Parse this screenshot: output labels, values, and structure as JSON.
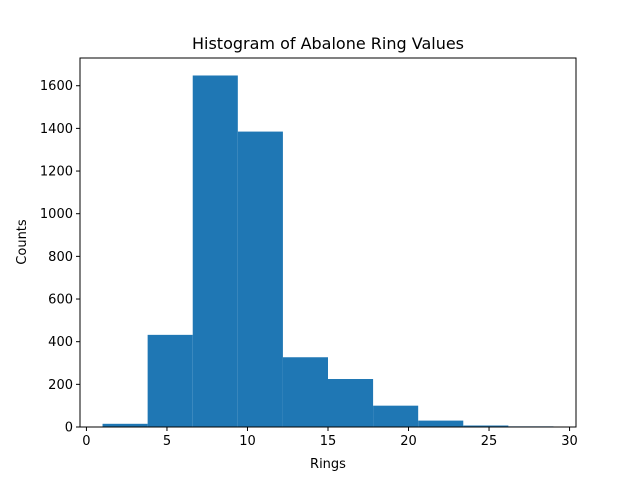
{
  "chart_data": {
    "type": "bar",
    "title": "Histogram of Abalone Ring Values",
    "xlabel": "Rings",
    "ylabel": "Counts",
    "xlim": [
      -0.4,
      30.4
    ],
    "ylim": [
      0,
      1730
    ],
    "x_ticks": [
      0,
      5,
      10,
      15,
      20,
      25,
      30
    ],
    "y_ticks": [
      0,
      200,
      400,
      600,
      800,
      1000,
      1200,
      1400,
      1600
    ],
    "bin_edges": [
      1.0,
      3.8,
      6.6,
      9.4,
      12.2,
      15.0,
      17.8,
      20.6,
      23.4,
      26.2,
      29.0
    ],
    "values": [
      15,
      432,
      1648,
      1385,
      327,
      225,
      100,
      30,
      7,
      3
    ],
    "bar_color": "#1f77b4",
    "grid": false,
    "legend": "none"
  }
}
